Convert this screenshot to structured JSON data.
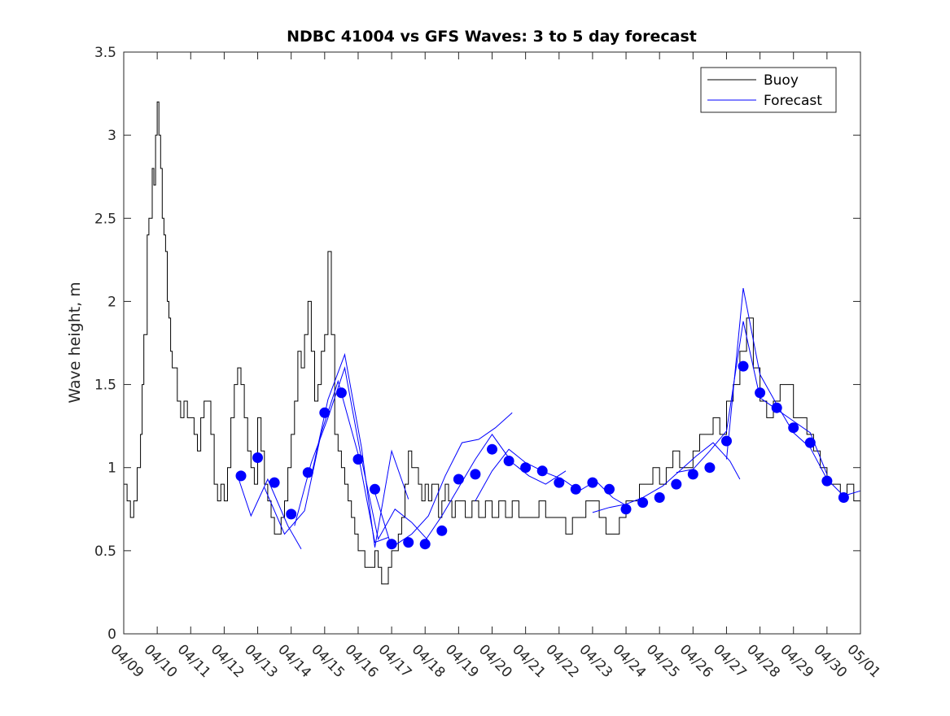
{
  "chart_data": {
    "type": "line",
    "title": "NDBC 41004 vs GFS Waves: 3 to 5 day forecast",
    "ylabel": "Wave height, m",
    "xlabel": "",
    "xlim": [
      0,
      22
    ],
    "ylim": [
      0,
      3.5
    ],
    "yticks": [
      0,
      0.5,
      1,
      1.5,
      2,
      2.5,
      3,
      3.5
    ],
    "ytick_labels": [
      "0",
      "0.5",
      "1",
      "1.5",
      "2",
      "2.5",
      "3",
      "3.5"
    ],
    "x_tick_labels": [
      "04/09",
      "04/10",
      "04/11",
      "04/12",
      "04/13",
      "04/14",
      "04/15",
      "04/16",
      "04/17",
      "04/18",
      "04/19",
      "04/20",
      "04/21",
      "04/22",
      "04/23",
      "04/24",
      "04/25",
      "04/26",
      "04/27",
      "04/28",
      "04/29",
      "04/30",
      "05/01"
    ],
    "grid": false,
    "legend": {
      "placement": "top-right",
      "entries": [
        {
          "name": "Buoy",
          "color": "#000000"
        },
        {
          "name": "Forecast",
          "color": "#0000ff"
        }
      ]
    },
    "colors": {
      "buoy": "#000000",
      "forecast": "#0000ff",
      "markers": "#0000ff"
    },
    "buoy": {
      "name": "Buoy",
      "x": [
        0,
        0.1,
        0.2,
        0.3,
        0.4,
        0.5,
        0.55,
        0.6,
        0.7,
        0.75,
        0.8,
        0.85,
        0.9,
        0.95,
        1.0,
        1.05,
        1.1,
        1.15,
        1.2,
        1.25,
        1.3,
        1.35,
        1.4,
        1.45,
        1.5,
        1.6,
        1.7,
        1.8,
        1.9,
        2.0,
        2.1,
        2.2,
        2.3,
        2.4,
        2.5,
        2.6,
        2.7,
        2.8,
        2.9,
        3.0,
        3.1,
        3.2,
        3.3,
        3.4,
        3.5,
        3.6,
        3.7,
        3.8,
        3.9,
        4.0,
        4.1,
        4.2,
        4.3,
        4.4,
        4.5,
        4.6,
        4.7,
        4.8,
        4.9,
        5.0,
        5.1,
        5.2,
        5.3,
        5.4,
        5.5,
        5.6,
        5.7,
        5.8,
        5.9,
        6.0,
        6.1,
        6.2,
        6.3,
        6.4,
        6.5,
        6.6,
        6.7,
        6.8,
        6.9,
        7.0,
        7.1,
        7.2,
        7.3,
        7.4,
        7.5,
        7.6,
        7.7,
        7.8,
        7.9,
        8.0,
        8.1,
        8.2,
        8.3,
        8.4,
        8.5,
        8.6,
        8.7,
        8.8,
        8.9,
        9.0,
        9.1,
        9.2,
        9.3,
        9.4,
        9.5,
        9.6,
        9.7,
        9.8,
        9.9,
        10.0,
        10.2,
        10.4,
        10.6,
        10.8,
        11.0,
        11.2,
        11.4,
        11.6,
        11.8,
        12.0,
        12.2,
        12.4,
        12.6,
        12.8,
        13.0,
        13.2,
        13.4,
        13.6,
        13.8,
        14.0,
        14.2,
        14.4,
        14.6,
        14.8,
        15.0,
        15.2,
        15.4,
        15.6,
        15.8,
        16.0,
        16.2,
        16.4,
        16.6,
        16.8,
        17.0,
        17.2,
        17.4,
        17.6,
        17.8,
        18.0,
        18.2,
        18.4,
        18.6,
        18.8,
        19.0,
        19.2,
        19.4,
        19.6,
        19.8,
        20.0,
        20.2,
        20.4,
        20.6,
        20.8,
        21.0,
        21.2,
        21.4,
        21.6,
        21.8,
        22.0
      ],
      "y": [
        0.9,
        0.8,
        0.7,
        0.8,
        1.0,
        1.2,
        1.5,
        1.8,
        2.4,
        2.5,
        2.5,
        2.8,
        2.7,
        3.0,
        3.2,
        3.0,
        2.8,
        2.5,
        2.4,
        2.3,
        2.0,
        1.9,
        1.7,
        1.6,
        1.6,
        1.4,
        1.3,
        1.4,
        1.3,
        1.3,
        1.2,
        1.1,
        1.3,
        1.4,
        1.4,
        1.2,
        0.9,
        0.8,
        0.9,
        0.8,
        1.0,
        1.3,
        1.5,
        1.6,
        1.5,
        1.3,
        1.1,
        1.0,
        0.9,
        1.3,
        1.1,
        0.9,
        0.8,
        0.7,
        0.6,
        0.6,
        0.7,
        0.8,
        1.0,
        1.2,
        1.4,
        1.7,
        1.6,
        1.8,
        2.0,
        1.7,
        1.4,
        1.5,
        1.7,
        1.8,
        2.3,
        1.8,
        1.2,
        1.1,
        1.0,
        0.9,
        0.8,
        0.7,
        0.6,
        0.5,
        0.5,
        0.4,
        0.4,
        0.4,
        0.5,
        0.4,
        0.3,
        0.3,
        0.4,
        0.5,
        0.5,
        0.6,
        0.7,
        0.9,
        1.1,
        1.0,
        1.0,
        0.9,
        0.8,
        0.9,
        0.8,
        0.9,
        0.9,
        0.7,
        0.8,
        0.9,
        0.8,
        0.7,
        0.8,
        0.8,
        0.7,
        0.8,
        0.7,
        0.8,
        0.7,
        0.8,
        0.7,
        0.8,
        0.7,
        0.7,
        0.7,
        0.8,
        0.7,
        0.7,
        0.7,
        0.6,
        0.7,
        0.7,
        0.8,
        0.8,
        0.7,
        0.6,
        0.6,
        0.7,
        0.8,
        0.8,
        0.9,
        0.9,
        1.0,
        0.9,
        1.0,
        1.1,
        1.0,
        1.0,
        1.1,
        1.2,
        1.2,
        1.3,
        1.2,
        1.4,
        1.5,
        1.7,
        1.9,
        1.6,
        1.4,
        1.3,
        1.4,
        1.5,
        1.5,
        1.3,
        1.3,
        1.2,
        1.1,
        1.0,
        0.9,
        0.9,
        0.8,
        0.9,
        0.8,
        0.8
      ]
    },
    "forecast_series": [
      {
        "x": [
          3.4,
          3.8,
          4.3,
          4.9,
          5.3
        ],
        "y": [
          0.95,
          0.71,
          0.93,
          0.65,
          0.51
        ]
      },
      {
        "x": [
          4.2,
          4.8,
          5.4,
          5.9,
          6.4,
          7.0,
          7.5,
          7.9
        ],
        "y": [
          0.88,
          0.6,
          0.74,
          1.21,
          1.52,
          1.08,
          0.55,
          0.58
        ]
      },
      {
        "x": [
          5.1,
          5.6,
          6.1,
          6.6,
          7.1,
          7.6,
          8.1,
          8.6,
          9.1
        ],
        "y": [
          0.65,
          1.03,
          1.3,
          1.6,
          1.05,
          0.57,
          0.75,
          0.67,
          0.56
        ]
      },
      {
        "x": [
          5.6,
          6.1,
          6.6,
          7.1,
          7.5,
          8.0,
          8.5
        ],
        "y": [
          0.95,
          1.41,
          1.68,
          1.12,
          0.52,
          1.1,
          0.81
        ]
      },
      {
        "x": [
          7.5,
          8.0,
          8.6,
          9.1,
          9.6,
          10.1,
          10.6,
          11.1,
          11.6
        ],
        "y": [
          0.85,
          0.52,
          0.6,
          0.71,
          0.95,
          1.15,
          1.17,
          1.24,
          1.33
        ]
      },
      {
        "x": [
          9.0,
          9.5,
          10.0,
          10.5,
          11.0,
          11.6,
          12.1,
          12.6,
          13.2
        ],
        "y": [
          0.56,
          0.71,
          0.88,
          1.05,
          1.2,
          1.03,
          0.95,
          0.9,
          0.98
        ]
      },
      {
        "x": [
          10.5,
          11.0,
          11.5,
          12.0,
          12.6,
          13.1,
          13.6,
          14.1,
          14.6,
          15.1
        ],
        "y": [
          0.8,
          0.98,
          1.11,
          1.03,
          0.97,
          0.93,
          0.86,
          0.92,
          0.82,
          0.76
        ]
      },
      {
        "x": [
          14.0,
          14.5,
          15.0,
          15.5,
          16.1,
          16.6,
          17.1,
          17.6,
          18.1,
          18.4
        ],
        "y": [
          0.73,
          0.76,
          0.78,
          0.82,
          0.89,
          0.98,
          1.07,
          1.15,
          1.04,
          0.93
        ]
      },
      {
        "x": [
          16.5,
          17.0,
          17.5,
          18.0,
          18.5,
          19.0,
          19.5,
          20.0,
          20.5,
          21.0
        ],
        "y": [
          0.97,
          0.99,
          1.1,
          1.22,
          1.88,
          1.42,
          1.35,
          1.28,
          1.21,
          0.96
        ]
      },
      {
        "x": [
          18.0,
          18.5,
          19.0,
          19.5,
          20.0,
          20.5,
          21.0,
          21.5,
          22.0
        ],
        "y": [
          1.05,
          2.08,
          1.56,
          1.38,
          1.21,
          1.12,
          0.93,
          0.83,
          0.86
        ]
      }
    ],
    "forecast_points": {
      "name": "Forecast",
      "x": [
        3.5,
        4.0,
        4.5,
        5.0,
        5.5,
        6.0,
        6.5,
        7.0,
        7.5,
        8.0,
        8.5,
        9.0,
        9.5,
        10.0,
        10.5,
        11.0,
        11.5,
        12.0,
        12.5,
        13.0,
        13.5,
        14.0,
        14.5,
        15.0,
        15.5,
        16.0,
        16.5,
        17.0,
        17.5,
        18.0,
        18.5,
        19.0,
        19.5,
        20.0,
        20.5,
        21.0,
        21.5
      ],
      "y": [
        0.95,
        1.06,
        0.91,
        0.72,
        0.97,
        1.33,
        1.45,
        1.05,
        0.87,
        0.54,
        0.55,
        0.54,
        0.62,
        0.93,
        0.96,
        1.11,
        1.04,
        1.0,
        0.98,
        0.91,
        0.87,
        0.91,
        0.87,
        0.75,
        0.79,
        0.82,
        0.9,
        0.96,
        1.0,
        1.16,
        1.61,
        1.45,
        1.36,
        1.24,
        1.15,
        0.92,
        0.82
      ]
    }
  }
}
